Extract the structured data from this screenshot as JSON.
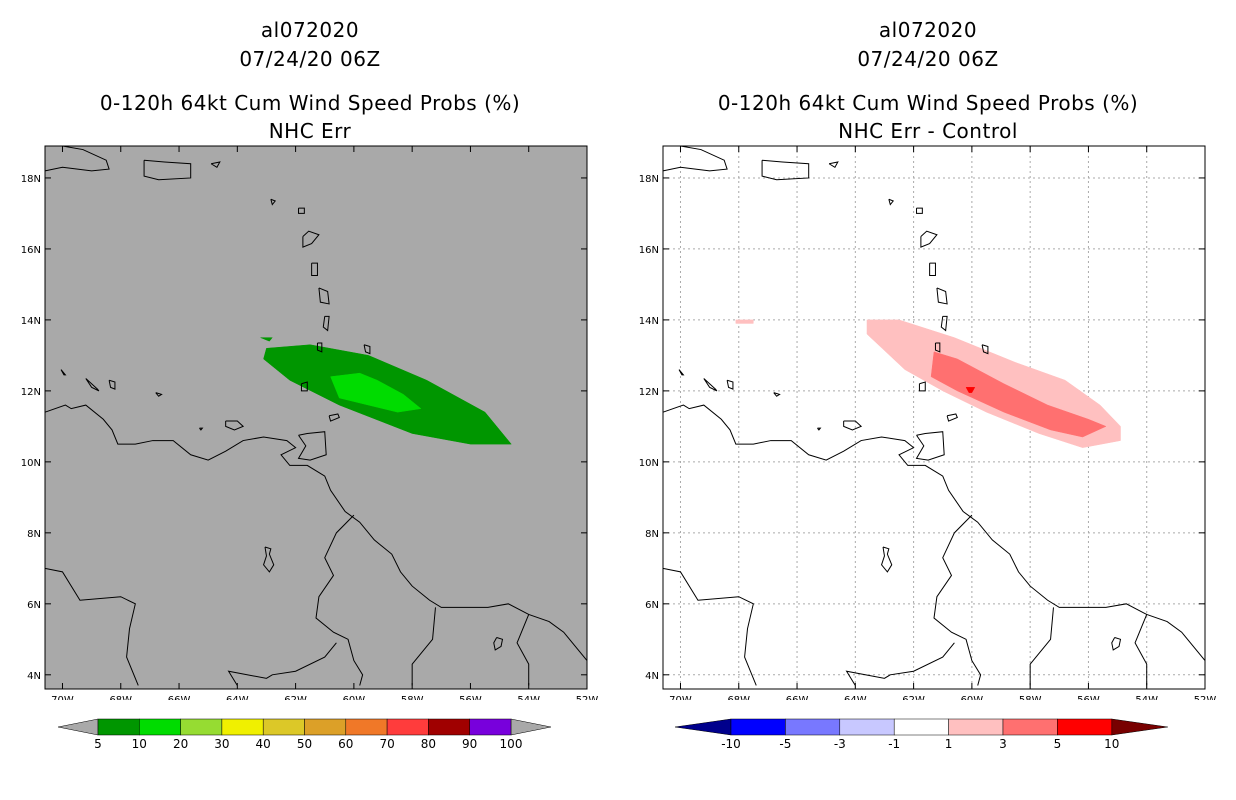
{
  "panels": [
    {
      "id": "left",
      "storm_id": "al072020",
      "datetime": "07/24/20 06Z",
      "product": "0-120h 64kt Cum Wind Speed Probs (%)",
      "subtitle": "NHC Err",
      "background": "#a9a9a9",
      "colorbar": {
        "colors": [
          "#009600",
          "#00dc00",
          "#96dc32",
          "#f0f000",
          "#dcc828",
          "#dca028",
          "#f07828",
          "#ff3c3c",
          "#a00000",
          "#7800dc"
        ],
        "labels": [
          "5",
          "10",
          "20",
          "30",
          "40",
          "50",
          "60",
          "70",
          "80",
          "90",
          "100"
        ],
        "end_color": "#a9a9a9"
      }
    },
    {
      "id": "right",
      "storm_id": "al072020",
      "datetime": "07/24/20 06Z",
      "product": "0-120h 64kt Cum Wind Speed Probs (%)",
      "subtitle": "NHC Err - Control",
      "background": "#ffffff",
      "colorbar": {
        "colors": [
          "#0000ff",
          "#7878ff",
          "#c8c8ff",
          "#ffffff",
          "#ffc0c0",
          "#ff7070",
          "#ff0000"
        ],
        "labels": [
          "-10",
          "-5",
          "-3",
          "-1",
          "1",
          "3",
          "5",
          "10"
        ],
        "left_end_color": "#00008c",
        "right_end_color": "#780000"
      }
    }
  ],
  "axes": {
    "lon_labels": [
      "70W",
      "68W",
      "66W",
      "64W",
      "62W",
      "60W",
      "58W",
      "56W",
      "54W",
      "52W"
    ],
    "lat_labels": [
      "18N",
      "16N",
      "14N",
      "12N",
      "10N",
      "8N",
      "6N",
      "4N"
    ]
  },
  "chart_data": {
    "type": "map",
    "lon_range": [
      -70.6,
      -52.0
    ],
    "lat_range": [
      3.6,
      18.9
    ],
    "left_field": [
      {
        "level": "5-10%",
        "color": "#009600",
        "polygon": [
          [
            -63.0,
            13.2
          ],
          [
            -61.5,
            13.3
          ],
          [
            -59.5,
            13.0
          ],
          [
            -57.5,
            12.3
          ],
          [
            -55.5,
            11.4
          ],
          [
            -54.6,
            10.5
          ],
          [
            -56.0,
            10.5
          ],
          [
            -58.0,
            10.8
          ],
          [
            -60.5,
            11.6
          ],
          [
            -62.2,
            12.3
          ],
          [
            -63.1,
            12.9
          ]
        ]
      },
      {
        "level": "5-10%",
        "color": "#009600",
        "polygon": [
          [
            -63.2,
            13.5
          ],
          [
            -62.8,
            13.5
          ],
          [
            -62.9,
            13.4
          ]
        ]
      },
      {
        "level": "10-20%",
        "color": "#00dc00",
        "polygon": [
          [
            -60.8,
            12.4
          ],
          [
            -59.8,
            12.5
          ],
          [
            -59.2,
            12.3
          ],
          [
            -58.3,
            11.9
          ],
          [
            -57.7,
            11.5
          ],
          [
            -58.5,
            11.4
          ],
          [
            -59.5,
            11.6
          ],
          [
            -60.5,
            11.8
          ]
        ]
      }
    ],
    "right_field": [
      {
        "level": "1-3",
        "color": "#ffc0c0",
        "polygon": [
          [
            -63.6,
            14.0
          ],
          [
            -62.5,
            14.0
          ],
          [
            -60.6,
            13.5
          ],
          [
            -58.5,
            12.8
          ],
          [
            -56.8,
            12.3
          ],
          [
            -55.6,
            11.6
          ],
          [
            -54.9,
            11.0
          ],
          [
            -54.9,
            10.6
          ],
          [
            -56.2,
            10.4
          ],
          [
            -57.7,
            10.8
          ],
          [
            -59.5,
            11.4
          ],
          [
            -61.0,
            12.0
          ],
          [
            -62.3,
            12.6
          ],
          [
            -63.6,
            13.6
          ]
        ]
      },
      {
        "level": "1-3",
        "color": "#ffc0c0",
        "polygon": [
          [
            -68.1,
            14.0
          ],
          [
            -67.5,
            14.0
          ],
          [
            -67.5,
            13.9
          ],
          [
            -68.1,
            13.9
          ]
        ]
      },
      {
        "level": "3-5",
        "color": "#ff7070",
        "polygon": [
          [
            -61.3,
            13.1
          ],
          [
            -60.5,
            12.9
          ],
          [
            -58.9,
            12.2
          ],
          [
            -57.4,
            11.6
          ],
          [
            -56.0,
            11.2
          ],
          [
            -55.4,
            11.0
          ],
          [
            -56.2,
            10.7
          ],
          [
            -57.3,
            10.9
          ],
          [
            -58.9,
            11.4
          ],
          [
            -60.5,
            12.0
          ],
          [
            -61.4,
            12.4
          ]
        ]
      },
      {
        "level": "5-10",
        "color": "#ff0000",
        "polygon": [
          [
            -60.2,
            12.1
          ],
          [
            -59.9,
            12.1
          ],
          [
            -60.0,
            11.95
          ],
          [
            -60.1,
            11.95
          ]
        ]
      }
    ]
  }
}
